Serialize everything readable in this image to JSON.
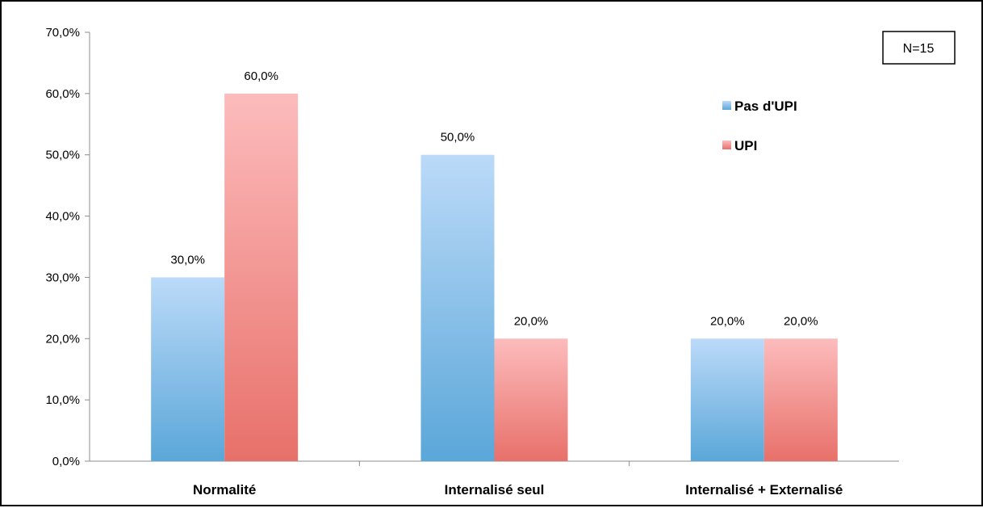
{
  "chart_data": {
    "type": "bar",
    "categories": [
      "Normalité",
      "Internalisé seul",
      "Internalisé + Externalisé"
    ],
    "series": [
      {
        "name": "Pas d'UPI",
        "values": [
          30.0,
          50.0,
          20.0
        ]
      },
      {
        "name": "UPI",
        "values": [
          60.0,
          20.0,
          20.0
        ]
      }
    ],
    "data_labels": [
      [
        "30,0%",
        "50,0%",
        "20,0%"
      ],
      [
        "60,0%",
        "20,0%",
        "20,0%"
      ]
    ],
    "y_ticks": [
      "0,0%",
      "10,0%",
      "20,0%",
      "30,0%",
      "40,0%",
      "50,0%",
      "60,0%",
      "70,0%"
    ],
    "ylim": [
      0,
      70
    ],
    "grid": false,
    "legend_position": "right",
    "annotation": "N=15",
    "colors": {
      "series_1_top": "#bcdaf8",
      "series_1_bottom": "#5aa7d9",
      "series_2_top": "#fcbcbc",
      "series_2_bottom": "#e8706a"
    }
  }
}
